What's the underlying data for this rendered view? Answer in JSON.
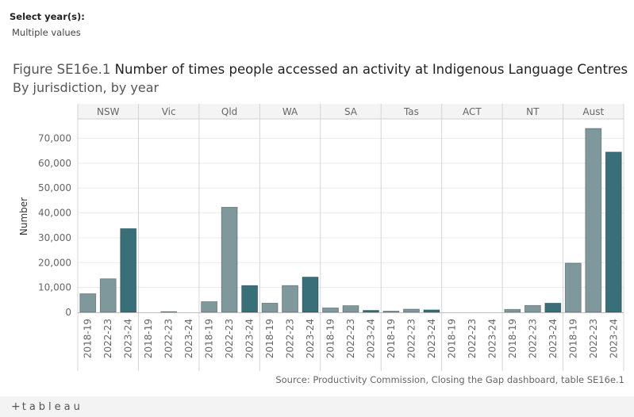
{
  "filter": {
    "label": "Select year(s):",
    "value": "Multiple values"
  },
  "title": {
    "figure": "Figure SE16e.1",
    "main": "Number of times people accessed an activity at Indigenous Language Centres"
  },
  "subtitle": "By jurisdiction, by year",
  "source": "Source: Productivity Commission, Closing the Gap dashboard, table SE16e.1",
  "footer": {
    "logo_text": "tableau",
    "logo_icon": "plus-cross-icon"
  },
  "colors": {
    "light_bar": "#7f989c",
    "dark_bar": "#386f79",
    "header_bg": "#f4f4f4",
    "grid": "#ececec"
  },
  "chart_data": {
    "type": "bar",
    "ylabel": "Number",
    "ylim": [
      0,
      74000
    ],
    "yticks": [
      0,
      10000,
      20000,
      30000,
      40000,
      50000,
      60000,
      70000
    ],
    "ytick_labels": [
      "0",
      "10,000",
      "20,000",
      "30,000",
      "40,000",
      "50,000",
      "60,000",
      "70,000"
    ],
    "grid": true,
    "categories": [
      "2018-19",
      "2022-23",
      "2023-24"
    ],
    "panels": [
      {
        "name": "NSW",
        "values": [
          7500,
          13500,
          33700
        ]
      },
      {
        "name": "Vic",
        "values": [
          0,
          300,
          0
        ]
      },
      {
        "name": "Qld",
        "values": [
          4300,
          42300,
          10800
        ]
      },
      {
        "name": "WA",
        "values": [
          3700,
          10800,
          14200
        ]
      },
      {
        "name": "SA",
        "values": [
          1800,
          2700,
          800
        ]
      },
      {
        "name": "Tas",
        "values": [
          500,
          1300,
          1000
        ]
      },
      {
        "name": "ACT",
        "values": [
          0,
          0,
          0
        ]
      },
      {
        "name": "NT",
        "values": [
          1200,
          2800,
          3700
        ]
      },
      {
        "name": "Aust",
        "values": [
          19800,
          74000,
          64500
        ]
      }
    ]
  }
}
